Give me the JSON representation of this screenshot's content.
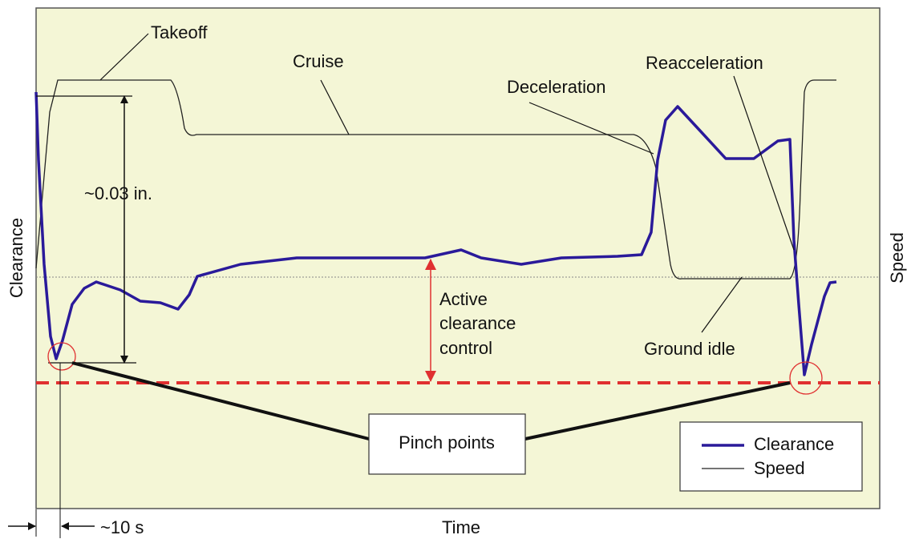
{
  "labels": {
    "takeoff": "Takeoff",
    "cruise": "Cruise",
    "deceleration": "Deceleration",
    "reacceleration": "Reacceleration",
    "clearance_span": "~0.03 in.",
    "active": [
      "Active",
      "clearance",
      "control"
    ],
    "ground_idle": "Ground idle",
    "pinch_points": "Pinch points",
    "time_step": "~10 s"
  },
  "axes": {
    "y_left": "Clearance",
    "y_right": "Speed",
    "x": "Time"
  },
  "legend": [
    "Clearance",
    "Speed"
  ]
}
